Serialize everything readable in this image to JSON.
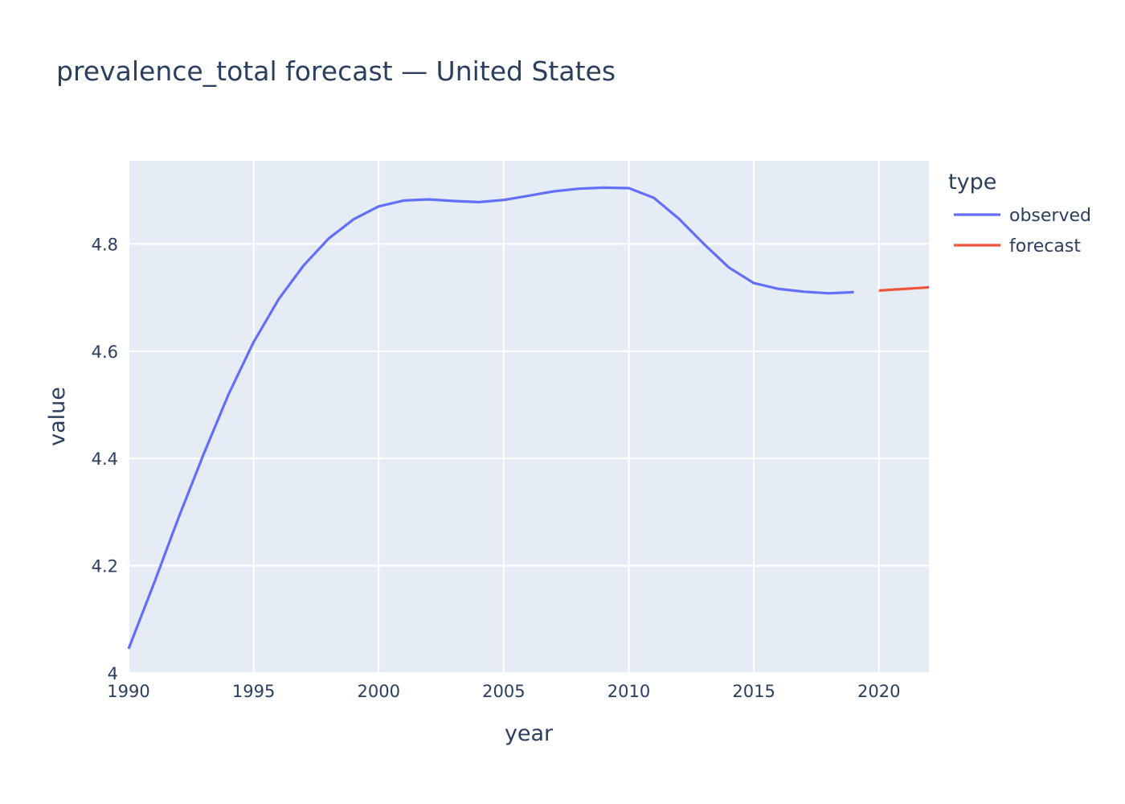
{
  "chart_data": {
    "type": "line",
    "title": "prevalence_total forecast — United States",
    "xlabel": "year",
    "ylabel": "value",
    "xlim": [
      1990,
      2022
    ],
    "ylim": [
      4.0,
      4.955
    ],
    "x_ticks": [
      1990,
      1995,
      2000,
      2005,
      2010,
      2015,
      2020
    ],
    "y_ticks": [
      4,
      4.2,
      4.4,
      4.6,
      4.8
    ],
    "y_tick_labels": [
      "4",
      "4.2",
      "4.4",
      "4.6",
      "4.8"
    ],
    "grid": true,
    "plot_background": "#E5ECF6",
    "legend_title": "type",
    "legend_position": "right",
    "series": [
      {
        "name": "observed",
        "color": "#636EFA",
        "x": [
          1990,
          1991,
          1992,
          1993,
          1994,
          1995,
          1996,
          1997,
          1998,
          1999,
          2000,
          2001,
          2002,
          2003,
          2004,
          2005,
          2006,
          2007,
          2008,
          2009,
          2010,
          2011,
          2012,
          2013,
          2014,
          2015,
          2016,
          2017,
          2018,
          2019
        ],
        "y": [
          4.045,
          4.165,
          4.29,
          4.408,
          4.52,
          4.617,
          4.697,
          4.76,
          4.81,
          4.846,
          4.87,
          4.881,
          4.883,
          4.88,
          4.878,
          4.882,
          4.89,
          4.898,
          4.903,
          4.905,
          4.904,
          4.886,
          4.847,
          4.8,
          4.756,
          4.727,
          4.716,
          4.711,
          4.708,
          4.71
        ]
      },
      {
        "name": "forecast",
        "color": "#EF553B",
        "x": [
          2020,
          2021,
          2022
        ],
        "y": [
          4.713,
          4.716,
          4.719
        ]
      }
    ]
  }
}
